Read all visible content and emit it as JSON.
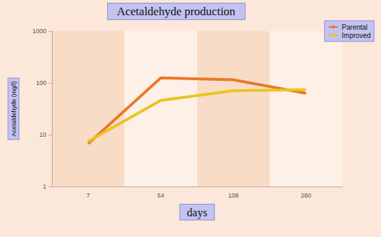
{
  "chart_data": {
    "type": "line",
    "title": "Acetaldehyde production",
    "x_label": "days",
    "y_label": "Acetaldehyde (mg/l)",
    "categories": [
      "7",
      "54",
      "108",
      "280"
    ],
    "series": [
      {
        "name": "Parental",
        "color": "#e8782a",
        "values": [
          6.7,
          125,
          115,
          63
        ]
      },
      {
        "name": "Improved",
        "color": "#e8c520",
        "values": [
          7.4,
          46,
          71,
          74
        ]
      }
    ],
    "log": "y",
    "ylim": [
      1,
      1000
    ],
    "yticks": [
      1,
      10,
      100,
      1000
    ],
    "grid": false,
    "legend": "top-right",
    "marker": "none"
  }
}
